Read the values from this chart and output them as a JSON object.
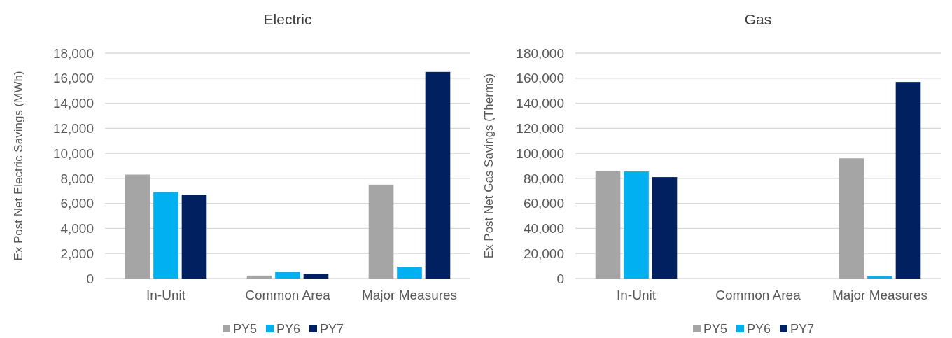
{
  "chart_data": [
    {
      "type": "bar",
      "title": "Electric",
      "ylabel": "Ex Post Net Electric Savings (MWh)",
      "categories": [
        "In-Unit",
        "Common Area",
        "Major Measures"
      ],
      "series": [
        {
          "name": "PY5",
          "color": "#a5a5a5",
          "values": [
            8300,
            230,
            7500
          ]
        },
        {
          "name": "PY6",
          "color": "#00b0f0",
          "values": [
            6900,
            530,
            950
          ]
        },
        {
          "name": "PY7",
          "color": "#002060",
          "values": [
            6700,
            340,
            16500
          ]
        }
      ],
      "ylim": [
        0,
        18000
      ],
      "yticks": [
        {
          "value": 0,
          "label": "0"
        },
        {
          "value": 2000,
          "label": "2,000"
        },
        {
          "value": 4000,
          "label": "4,000"
        },
        {
          "value": 6000,
          "label": "6,000"
        },
        {
          "value": 8000,
          "label": "8,000"
        },
        {
          "value": 10000,
          "label": "10,000"
        },
        {
          "value": 12000,
          "label": "12,000"
        },
        {
          "value": 14000,
          "label": "14,000"
        },
        {
          "value": 16000,
          "label": "16,000"
        },
        {
          "value": 18000,
          "label": "18,000"
        }
      ],
      "grid": "y",
      "legend": "bottom"
    },
    {
      "type": "bar",
      "title": "Gas",
      "ylabel": "Ex Post Net Gas  Savings (Therms)",
      "categories": [
        "In-Unit",
        "Common Area",
        "Major Measures"
      ],
      "series": [
        {
          "name": "PY5",
          "color": "#a5a5a5",
          "values": [
            86000,
            0,
            96000
          ]
        },
        {
          "name": "PY6",
          "color": "#00b0f0",
          "values": [
            85500,
            0,
            2000
          ]
        },
        {
          "name": "PY7",
          "color": "#002060",
          "values": [
            81000,
            0,
            157000
          ]
        }
      ],
      "ylim": [
        0,
        180000
      ],
      "yticks": [
        {
          "value": 0,
          "label": "0"
        },
        {
          "value": 20000,
          "label": "20,000"
        },
        {
          "value": 40000,
          "label": "40,000"
        },
        {
          "value": 60000,
          "label": "60,000"
        },
        {
          "value": 80000,
          "label": "80,000"
        },
        {
          "value": 100000,
          "label": "100,000"
        },
        {
          "value": 120000,
          "label": "120,000"
        },
        {
          "value": 140000,
          "label": "140,000"
        },
        {
          "value": 160000,
          "label": "160,000"
        },
        {
          "value": 180000,
          "label": "180,000"
        }
      ],
      "grid": "y",
      "legend": "bottom"
    }
  ]
}
